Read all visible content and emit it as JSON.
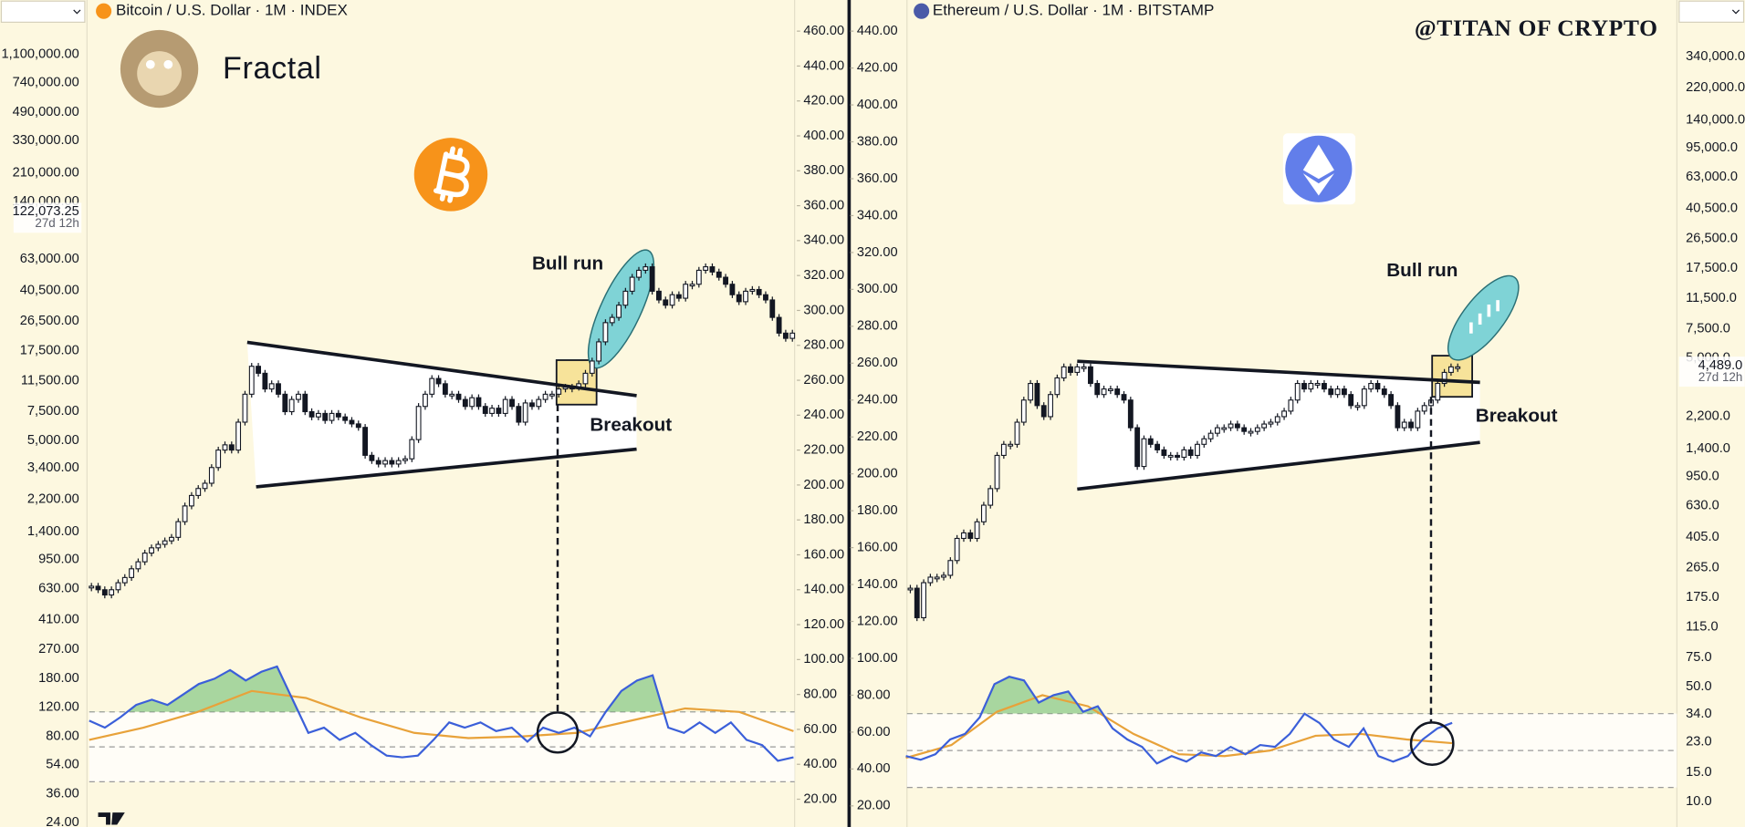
{
  "chart_data": [
    {
      "type": "candlestick",
      "title": "Bitcoin / U.S. Dollar · 1M · INDEX",
      "currency": "USD",
      "brand_text": "Fractal",
      "annotations": [
        "Bull run",
        "Breakout"
      ],
      "up_color": "#ffffff",
      "down_color": "#131722",
      "rsi_color": "#3b5fd9",
      "rsi_ma_color": "#e8a23a",
      "overbought_color": "#6fbf73",
      "values": [
        142,
        140,
        137,
        140,
        144,
        147,
        152,
        156,
        161,
        164,
        166,
        168,
        170,
        179,
        188,
        194,
        198,
        201,
        210,
        220,
        223,
        220,
        236,
        252,
        268,
        264,
        255,
        258,
        252,
        242,
        249,
        252,
        242,
        239,
        241,
        237,
        241,
        239,
        237,
        235,
        233,
        217,
        214,
        212,
        214,
        212,
        214,
        215,
        226,
        245,
        252,
        261,
        258,
        252,
        252,
        249,
        245,
        250,
        245,
        241,
        244,
        241,
        249,
        245,
        236,
        247,
        245,
        249,
        252,
        252,
        255,
        256,
        256,
        258,
        264,
        271,
        282,
        293,
        296,
        303,
        311,
        319,
        323,
        325,
        311,
        306,
        303,
        309,
        307,
        315,
        315,
        323,
        325,
        322,
        319,
        315,
        309,
        305,
        311,
        312,
        309,
        306,
        296,
        287,
        284,
        287
      ],
      "rsi": [
        65,
        61,
        67,
        74,
        77,
        74,
        80,
        86,
        89,
        94,
        88,
        93,
        96,
        77,
        58,
        61,
        54,
        58,
        51,
        45,
        44,
        45,
        54,
        64,
        61,
        64,
        59,
        61,
        53,
        61,
        58,
        61,
        56,
        70,
        82,
        88,
        91,
        61,
        58,
        64,
        58,
        64,
        54,
        51,
        42,
        44
      ],
      "rsi_ma": [
        54,
        61,
        70,
        82,
        78,
        67,
        58,
        55,
        56,
        58,
        65,
        72,
        70,
        59
      ],
      "rsi_levels": [
        30,
        50,
        70
      ],
      "ylim": [
        20,
        460
      ],
      "yticks": [
        {
          "value": 460,
          "label": "460.00"
        },
        {
          "value": 440,
          "label": "440.00"
        },
        {
          "value": 420,
          "label": "420.00"
        },
        {
          "value": 400,
          "label": "400.00"
        },
        {
          "value": 380,
          "label": "380.00"
        },
        {
          "value": 360,
          "label": "360.00"
        },
        {
          "value": 340,
          "label": "340.00"
        },
        {
          "value": 320,
          "label": "320.00"
        },
        {
          "value": 300,
          "label": "300.00"
        },
        {
          "value": 280,
          "label": "280.00"
        },
        {
          "value": 260,
          "label": "260.00"
        },
        {
          "value": 240,
          "label": "240.00"
        },
        {
          "value": 220,
          "label": "220.00"
        },
        {
          "value": 200,
          "label": "200.00"
        },
        {
          "value": 180,
          "label": "180.00"
        },
        {
          "value": 160,
          "label": "160.00"
        },
        {
          "value": 140,
          "label": "140.00"
        },
        {
          "value": 120,
          "label": "120.00"
        },
        {
          "value": 100,
          "label": "100.00"
        },
        {
          "value": 80,
          "label": "80.00"
        },
        {
          "value": 60,
          "label": "60.00"
        },
        {
          "value": 40,
          "label": "40.00"
        },
        {
          "value": 20,
          "label": "20.00"
        }
      ],
      "y2log": true,
      "y2lim": [
        33.3,
        1520000
      ],
      "y2ticks": [
        {
          "value": 1100000,
          "label": "1,100,000.00"
        },
        {
          "value": 740000,
          "label": "740,000.00"
        },
        {
          "value": 490000,
          "label": "490,000.00"
        },
        {
          "value": 330000,
          "label": "330,000.00"
        },
        {
          "value": 210000,
          "label": "210,000.00"
        },
        {
          "value": 140000,
          "label": "140,000.00"
        },
        {
          "value": 63000,
          "label": "63,000.00"
        },
        {
          "value": 40500,
          "label": "40,500.00"
        },
        {
          "value": 26500,
          "label": "26,500.00"
        },
        {
          "value": 17500,
          "label": "17,500.00"
        },
        {
          "value": 11500,
          "label": "11,500.00"
        },
        {
          "value": 7500,
          "label": "7,500.00"
        },
        {
          "value": 5000,
          "label": "5,000.00"
        },
        {
          "value": 3400,
          "label": "3,400.00"
        },
        {
          "value": 2200,
          "label": "2,200.00"
        },
        {
          "value": 1400,
          "label": "1,400.00"
        },
        {
          "value": 950,
          "label": "950.00"
        },
        {
          "value": 630,
          "label": "630.00"
        },
        {
          "value": 410,
          "label": "410.00"
        },
        {
          "value": 270,
          "label": "270.00"
        },
        {
          "value": 180,
          "label": "180.00"
        },
        {
          "value": 120,
          "label": "120.00"
        },
        {
          "value": 80,
          "label": "80.00"
        },
        {
          "value": 54,
          "label": "54.00"
        },
        {
          "value": 36,
          "label": "36.00"
        },
        {
          "value": 24,
          "label": "24.00"
        }
      ],
      "last_price": {
        "value": 122073.25,
        "label": "122,073.25"
      },
      "countdown": "27d 12h"
    },
    {
      "type": "candlestick",
      "title": "Ethereum / U.S. Dollar · 1M · BITSTAMP",
      "currency": "USD",
      "brand_text": "@TITAN OF CRYPTO",
      "annotations": [
        "Bull run",
        "Breakout"
      ],
      "up_color": "#ffffff",
      "down_color": "#131722",
      "rsi_color": "#3b5fd9",
      "rsi_ma_color": "#e8a23a",
      "overbought_color": "#6fbf73",
      "values": [
        138,
        122,
        141,
        144,
        144,
        145,
        153,
        165,
        168,
        165,
        174,
        183,
        192,
        210,
        216,
        216,
        228,
        240,
        249,
        237,
        231,
        243,
        252,
        258,
        255,
        258,
        258,
        249,
        243,
        246,
        246,
        243,
        240,
        225,
        204,
        219,
        216,
        213,
        210,
        210,
        209,
        213,
        210,
        216,
        219,
        222,
        225,
        225,
        227,
        225,
        223,
        223,
        225,
        227,
        228,
        231,
        234,
        240,
        249,
        246,
        249,
        249,
        246,
        243,
        246,
        243,
        237,
        237,
        246,
        249,
        246,
        243,
        237,
        225,
        228,
        225,
        234,
        237,
        240,
        249,
        255,
        258,
        258
      ],
      "rsi": [
        47,
        45,
        48,
        56,
        59,
        68,
        86,
        90,
        88,
        76,
        80,
        82,
        71,
        74,
        62,
        56,
        52,
        43,
        47,
        44,
        49,
        47,
        52,
        48,
        53,
        52,
        59,
        70,
        65,
        56,
        52,
        62,
        47,
        44,
        47,
        56,
        62,
        65
      ],
      "rsi_ma": [
        46,
        53,
        71,
        80,
        74,
        59,
        48,
        47,
        50,
        58,
        59,
        56,
        54
      ],
      "rsi_levels": [
        30,
        50,
        70
      ],
      "ylim": [
        20,
        440
      ],
      "yticks": [
        {
          "value": 440,
          "label": "440.00"
        },
        {
          "value": 420,
          "label": "420.00"
        },
        {
          "value": 400,
          "label": "400.00"
        },
        {
          "value": 380,
          "label": "380.00"
        },
        {
          "value": 360,
          "label": "360.00"
        },
        {
          "value": 340,
          "label": "340.00"
        },
        {
          "value": 320,
          "label": "320.00"
        },
        {
          "value": 300,
          "label": "300.00"
        },
        {
          "value": 280,
          "label": "280.00"
        },
        {
          "value": 260,
          "label": "260.00"
        },
        {
          "value": 240,
          "label": "240.00"
        },
        {
          "value": 220,
          "label": "220.00"
        },
        {
          "value": 200,
          "label": "200.00"
        },
        {
          "value": 180,
          "label": "180.00"
        },
        {
          "value": 160,
          "label": "160.00"
        },
        {
          "value": 140,
          "label": "140.00"
        },
        {
          "value": 120,
          "label": "120.00"
        },
        {
          "value": 100,
          "label": "100.00"
        },
        {
          "value": 80,
          "label": "80.00"
        },
        {
          "value": 60,
          "label": "60.00"
        },
        {
          "value": 40,
          "label": "40.00"
        },
        {
          "value": 20,
          "label": "20.00"
        }
      ],
      "y2log": true,
      "y2lim": [
        9.4,
        486000
      ],
      "y2ticks": [
        {
          "value": 340000,
          "label": "340,000.0"
        },
        {
          "value": 220000,
          "label": "220,000.0"
        },
        {
          "value": 140000,
          "label": "140,000.0"
        },
        {
          "value": 95000,
          "label": "95,000.0"
        },
        {
          "value": 63000,
          "label": "63,000.0"
        },
        {
          "value": 40500,
          "label": "40,500.0"
        },
        {
          "value": 26500,
          "label": "26,500.0"
        },
        {
          "value": 17500,
          "label": "17,500.0"
        },
        {
          "value": 11500,
          "label": "11,500.0"
        },
        {
          "value": 7500,
          "label": "7,500.0"
        },
        {
          "value": 5000,
          "label": "5,000.0"
        },
        {
          "value": 2200,
          "label": "2,200.0"
        },
        {
          "value": 1400,
          "label": "1,400.0"
        },
        {
          "value": 950,
          "label": "950.0"
        },
        {
          "value": 630,
          "label": "630.0"
        },
        {
          "value": 405,
          "label": "405.0"
        },
        {
          "value": 265,
          "label": "265.0"
        },
        {
          "value": 175,
          "label": "175.0"
        },
        {
          "value": 115,
          "label": "115.0"
        },
        {
          "value": 75,
          "label": "75.0"
        },
        {
          "value": 50,
          "label": "50.0"
        },
        {
          "value": 34,
          "label": "34.0"
        },
        {
          "value": 23,
          "label": "23.0"
        },
        {
          "value": 15,
          "label": "15.0"
        },
        {
          "value": 10,
          "label": "10.0"
        }
      ],
      "last_price": {
        "value": 4489.0,
        "label": "4,489.0"
      },
      "countdown": "27d 12h"
    }
  ]
}
